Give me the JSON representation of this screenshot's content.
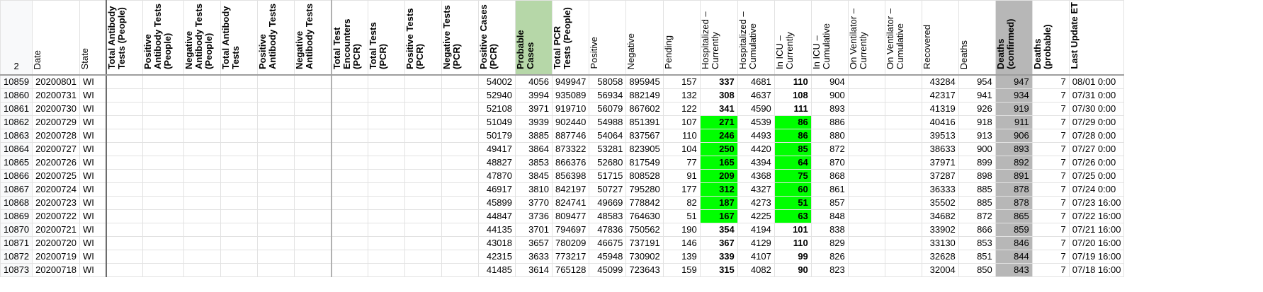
{
  "header_row_number": "2",
  "columns": [
    {
      "key": "date",
      "label": "Date",
      "bold": false
    },
    {
      "key": "state",
      "label": "State",
      "bold": false
    },
    {
      "key": "tat",
      "label": "Total Antibody Tests (People)",
      "bold": true
    },
    {
      "key": "pat",
      "label": "Positive Antibody Tests (People)",
      "bold": true
    },
    {
      "key": "nat",
      "label": "Negative Antibody Tests (People)",
      "bold": true
    },
    {
      "key": "tat2",
      "label": "Total Antibody Tests",
      "bold": true
    },
    {
      "key": "pat2",
      "label": "Positive Antibody Tests",
      "bold": true
    },
    {
      "key": "nat2",
      "label": "Negative Antibody Tests",
      "bold": true
    },
    {
      "key": "tte",
      "label": "Total Test Encounters (PCR)",
      "bold": true
    },
    {
      "key": "ttp",
      "label": "Total Tests (PCR)",
      "bold": true
    },
    {
      "key": "ptp",
      "label": "Positive Tests (PCR)",
      "bold": true
    },
    {
      "key": "ntp",
      "label": "Negative Tests (PCR)",
      "bold": true
    },
    {
      "key": "pcp",
      "label": "Positive Cases (PCR)",
      "bold": true
    },
    {
      "key": "prob",
      "label": "Probable Cases",
      "bold": true
    },
    {
      "key": "tpp",
      "label": "Total PCR Tests (People)",
      "bold": true
    },
    {
      "key": "pos",
      "label": "Positive",
      "bold": false
    },
    {
      "key": "neg",
      "label": "Negative",
      "bold": false
    },
    {
      "key": "pend",
      "label": "Pending",
      "bold": false
    },
    {
      "key": "hc",
      "label": "Hospitalized – Currently",
      "bold": false
    },
    {
      "key": "hcu",
      "label": "Hospitalized – Cumulative",
      "bold": false
    },
    {
      "key": "icc",
      "label": "In ICU – Currently",
      "bold": false
    },
    {
      "key": "icu",
      "label": "In ICU – Cumulative",
      "bold": false
    },
    {
      "key": "vc",
      "label": "On Ventilator – Currently",
      "bold": false
    },
    {
      "key": "vcu",
      "label": "On Ventilator – Cumulative",
      "bold": false
    },
    {
      "key": "rec",
      "label": "Recovered",
      "bold": false
    },
    {
      "key": "dth",
      "label": "Deaths",
      "bold": false
    },
    {
      "key": "dc",
      "label": "Deaths (confirmed)",
      "bold": true
    },
    {
      "key": "dp",
      "label": "Deaths (probable)",
      "bold": true
    },
    {
      "key": "lu",
      "label": "Last Update ET",
      "bold": true
    }
  ],
  "rows": [
    {
      "n": "10859",
      "date": "20200801",
      "state": "WI",
      "pcp": "54002",
      "prob": "4056",
      "tpp": "949947",
      "pos": "58058",
      "neg": "895945",
      "pend": "157",
      "hc": "337",
      "hcu": "4681",
      "icc": "110",
      "icu": "904",
      "rec": "43284",
      "dth": "954",
      "dc": "947",
      "dp": "7",
      "lu": "08/01 0:00",
      "hl": false
    },
    {
      "n": "10860",
      "date": "20200731",
      "state": "WI",
      "pcp": "52940",
      "prob": "3994",
      "tpp": "935089",
      "pos": "56934",
      "neg": "882149",
      "pend": "132",
      "hc": "308",
      "hcu": "4637",
      "icc": "108",
      "icu": "900",
      "rec": "42317",
      "dth": "941",
      "dc": "934",
      "dp": "7",
      "lu": "07/31 0:00",
      "hl": false
    },
    {
      "n": "10861",
      "date": "20200730",
      "state": "WI",
      "pcp": "52108",
      "prob": "3971",
      "tpp": "919710",
      "pos": "56079",
      "neg": "867602",
      "pend": "122",
      "hc": "341",
      "hcu": "4590",
      "icc": "111",
      "icu": "893",
      "rec": "41319",
      "dth": "926",
      "dc": "919",
      "dp": "7",
      "lu": "07/30 0:00",
      "hl": false
    },
    {
      "n": "10862",
      "date": "20200729",
      "state": "WI",
      "pcp": "51049",
      "prob": "3939",
      "tpp": "902440",
      "pos": "54988",
      "neg": "851391",
      "pend": "107",
      "hc": "271",
      "hcu": "4539",
      "icc": "86",
      "icu": "886",
      "rec": "40416",
      "dth": "918",
      "dc": "911",
      "dp": "7",
      "lu": "07/29 0:00",
      "hl": true
    },
    {
      "n": "10863",
      "date": "20200728",
      "state": "WI",
      "pcp": "50179",
      "prob": "3885",
      "tpp": "887746",
      "pos": "54064",
      "neg": "837567",
      "pend": "110",
      "hc": "246",
      "hcu": "4493",
      "icc": "86",
      "icu": "880",
      "rec": "39513",
      "dth": "913",
      "dc": "906",
      "dp": "7",
      "lu": "07/28 0:00",
      "hl": true
    },
    {
      "n": "10864",
      "date": "20200727",
      "state": "WI",
      "pcp": "49417",
      "prob": "3864",
      "tpp": "873322",
      "pos": "53281",
      "neg": "823905",
      "pend": "104",
      "hc": "250",
      "hcu": "4420",
      "icc": "85",
      "icu": "872",
      "rec": "38633",
      "dth": "900",
      "dc": "893",
      "dp": "7",
      "lu": "07/27 0:00",
      "hl": true
    },
    {
      "n": "10865",
      "date": "20200726",
      "state": "WI",
      "pcp": "48827",
      "prob": "3853",
      "tpp": "866376",
      "pos": "52680",
      "neg": "817549",
      "pend": "77",
      "hc": "165",
      "hcu": "4394",
      "icc": "64",
      "icu": "870",
      "rec": "37971",
      "dth": "899",
      "dc": "892",
      "dp": "7",
      "lu": "07/26 0:00",
      "hl": true
    },
    {
      "n": "10866",
      "date": "20200725",
      "state": "WI",
      "pcp": "47870",
      "prob": "3845",
      "tpp": "856398",
      "pos": "51715",
      "neg": "808528",
      "pend": "91",
      "hc": "209",
      "hcu": "4368",
      "icc": "75",
      "icu": "868",
      "rec": "37287",
      "dth": "898",
      "dc": "891",
      "dp": "7",
      "lu": "07/25 0:00",
      "hl": true
    },
    {
      "n": "10867",
      "date": "20200724",
      "state": "WI",
      "pcp": "46917",
      "prob": "3810",
      "tpp": "842197",
      "pos": "50727",
      "neg": "795280",
      "pend": "177",
      "hc": "312",
      "hcu": "4327",
      "icc": "60",
      "icu": "861",
      "rec": "36333",
      "dth": "885",
      "dc": "878",
      "dp": "7",
      "lu": "07/24 0:00",
      "hl": true
    },
    {
      "n": "10868",
      "date": "20200723",
      "state": "WI",
      "pcp": "45899",
      "prob": "3770",
      "tpp": "824741",
      "pos": "49669",
      "neg": "778842",
      "pend": "82",
      "hc": "187",
      "hcu": "4273",
      "icc": "51",
      "icu": "857",
      "rec": "35502",
      "dth": "885",
      "dc": "878",
      "dp": "7",
      "lu": "07/23 16:00",
      "hl": true
    },
    {
      "n": "10869",
      "date": "20200722",
      "state": "WI",
      "pcp": "44847",
      "prob": "3736",
      "tpp": "809477",
      "pos": "48583",
      "neg": "764630",
      "pend": "51",
      "hc": "167",
      "hcu": "4225",
      "icc": "63",
      "icu": "848",
      "rec": "34682",
      "dth": "872",
      "dc": "865",
      "dp": "7",
      "lu": "07/22 16:00",
      "hl": true
    },
    {
      "n": "10870",
      "date": "20200721",
      "state": "WI",
      "pcp": "44135",
      "prob": "3701",
      "tpp": "794697",
      "pos": "47836",
      "neg": "750562",
      "pend": "190",
      "hc": "354",
      "hcu": "4194",
      "icc": "101",
      "icu": "838",
      "rec": "33902",
      "dth": "866",
      "dc": "859",
      "dp": "7",
      "lu": "07/21 16:00",
      "hl": false
    },
    {
      "n": "10871",
      "date": "20200720",
      "state": "WI",
      "pcp": "43018",
      "prob": "3657",
      "tpp": "780209",
      "pos": "46675",
      "neg": "737191",
      "pend": "146",
      "hc": "367",
      "hcu": "4129",
      "icc": "110",
      "icu": "829",
      "rec": "33130",
      "dth": "853",
      "dc": "846",
      "dp": "7",
      "lu": "07/20 16:00",
      "hl": false
    },
    {
      "n": "10872",
      "date": "20200719",
      "state": "WI",
      "pcp": "42315",
      "prob": "3633",
      "tpp": "773217",
      "pos": "45948",
      "neg": "730902",
      "pend": "139",
      "hc": "339",
      "hcu": "4107",
      "icc": "99",
      "icu": "826",
      "rec": "32628",
      "dth": "851",
      "dc": "844",
      "dp": "7",
      "lu": "07/19 16:00",
      "hl": false
    },
    {
      "n": "10873",
      "date": "20200718",
      "state": "WI",
      "pcp": "41485",
      "prob": "3614",
      "tpp": "765128",
      "pos": "45099",
      "neg": "723643",
      "pend": "159",
      "hc": "315",
      "hcu": "4082",
      "icc": "90",
      "icu": "823",
      "rec": "32004",
      "dth": "850",
      "dc": "843",
      "dp": "7",
      "lu": "07/18 16:00",
      "hl": false
    }
  ],
  "colors": {
    "highlight_green": "#00ff00",
    "header_green": "#b6d7a8",
    "deaths_confirmed_grey": "#b7b7b7"
  }
}
